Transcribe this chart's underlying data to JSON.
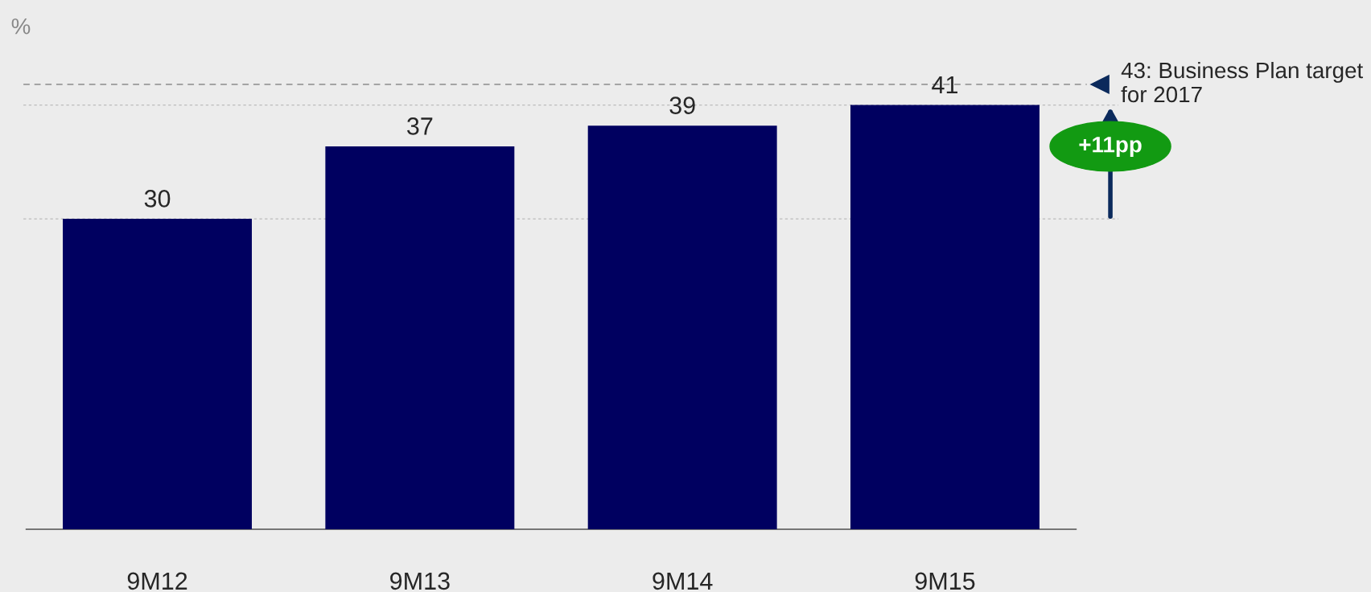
{
  "chart_data": {
    "type": "bar",
    "ylabel": "%",
    "categories": [
      "9M12",
      "9M13",
      "9M14",
      "9M15"
    ],
    "values": [
      30,
      37,
      39,
      41
    ],
    "color": "#000060",
    "data_labels": true,
    "grid": false,
    "ref_lines": [
      {
        "axis": "y",
        "value": 43,
        "label": "43: Business Plan target for 2017",
        "color": "#999999",
        "line_style": "dashed"
      },
      {
        "axis": "y",
        "value": 30,
        "label": null,
        "color": "#bbbbbb",
        "line_style": "dotted"
      },
      {
        "axis": "y",
        "value": 41,
        "label": null,
        "color": "#bbbbbb",
        "line_style": "dotted"
      }
    ],
    "annotations": [
      "+11pp"
    ]
  }
}
